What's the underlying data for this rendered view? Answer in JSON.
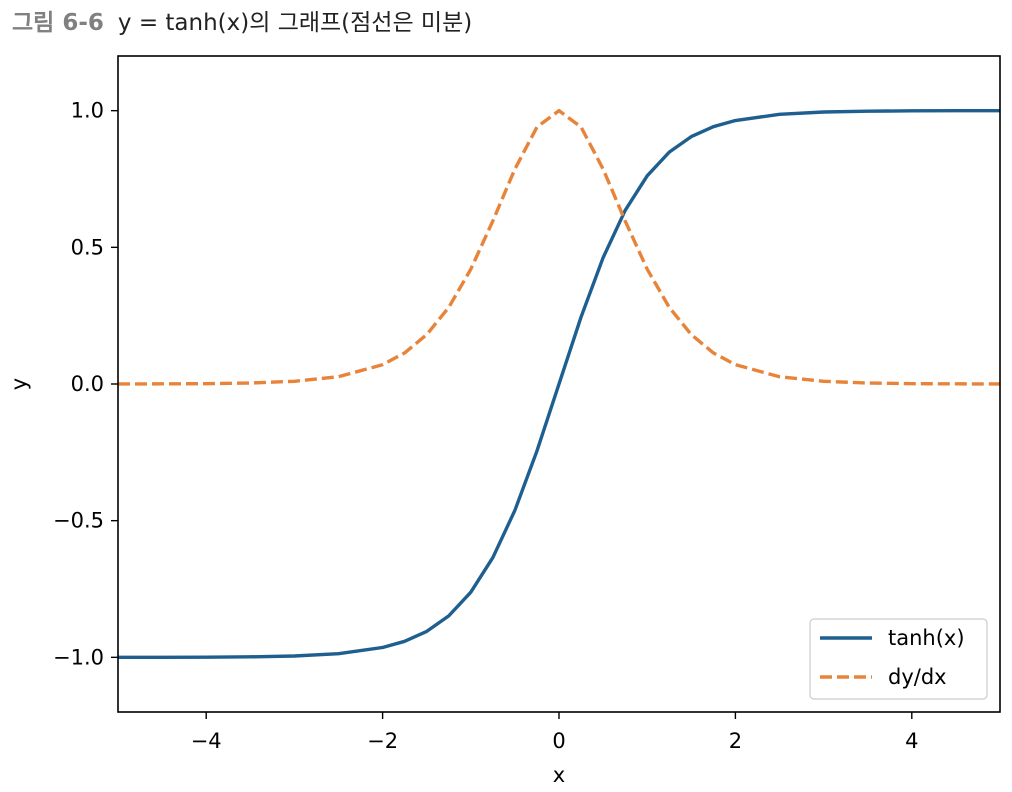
{
  "figure": {
    "number": "그림 6-6",
    "title": "y = tanh(x)의 그래프(점선은 미분)"
  },
  "chart_data": {
    "type": "line",
    "xlabel": "x",
    "ylabel": "y",
    "xlim": [
      -5,
      5
    ],
    "ylim": [
      -1.2,
      1.2
    ],
    "xticks": [
      -4,
      -2,
      0,
      2,
      4
    ],
    "xtick_labels": [
      "−4",
      "−2",
      "0",
      "2",
      "4"
    ],
    "yticks": [
      -1.0,
      -0.5,
      0.0,
      0.5,
      1.0
    ],
    "ytick_labels": [
      "−1.0",
      "−0.5",
      "0.0",
      "0.5",
      "1.0"
    ],
    "grid": false,
    "legend_position": "lower-right",
    "x": [
      -5.0,
      -4.5,
      -4.0,
      -3.5,
      -3.0,
      -2.5,
      -2.0,
      -1.75,
      -1.5,
      -1.25,
      -1.0,
      -0.75,
      -0.5,
      -0.25,
      0.0,
      0.25,
      0.5,
      0.75,
      1.0,
      1.25,
      1.5,
      1.75,
      2.0,
      2.5,
      3.0,
      3.5,
      4.0,
      4.5,
      5.0
    ],
    "series": [
      {
        "name": "tanh(x)",
        "style": "solid",
        "color": "#1f5f8f",
        "values": [
          -0.9999,
          -0.9998,
          -0.9993,
          -0.9982,
          -0.9951,
          -0.9866,
          -0.964,
          -0.9414,
          -0.9051,
          -0.8483,
          -0.7616,
          -0.6351,
          -0.4621,
          -0.2449,
          0.0,
          0.2449,
          0.4621,
          0.6351,
          0.7616,
          0.8483,
          0.9051,
          0.9414,
          0.964,
          0.9866,
          0.9951,
          0.9982,
          0.9993,
          0.9998,
          0.9999
        ]
      },
      {
        "name": "dy/dx",
        "style": "dashed",
        "color": "#e8843a",
        "values": [
          0.0002,
          0.0005,
          0.0013,
          0.0036,
          0.0099,
          0.0266,
          0.0707,
          0.1138,
          0.1807,
          0.2804,
          0.42,
          0.5967,
          0.7864,
          0.94,
          1.0,
          0.94,
          0.7864,
          0.5967,
          0.42,
          0.2804,
          0.1807,
          0.1138,
          0.0707,
          0.0266,
          0.0099,
          0.0036,
          0.0013,
          0.0005,
          0.0002
        ]
      }
    ]
  }
}
